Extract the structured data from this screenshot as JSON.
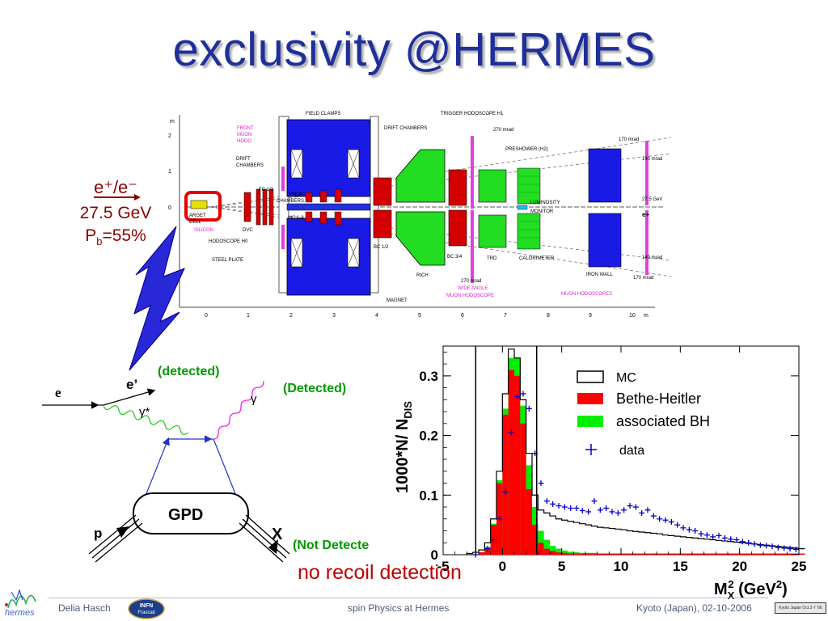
{
  "slide": {
    "title": "exclusivity @HERMES",
    "beam_particles": "e⁺/e⁻",
    "beam_energy": "27.5 GeV",
    "beam_pol_label": "P",
    "beam_pol_sub": "b",
    "beam_pol_value": "=55%",
    "no_recoil": "no recoil detection"
  },
  "detector": {
    "axis_unit_top": "m",
    "y_ticks": [
      "2",
      "1",
      "0",
      "-1"
    ],
    "x_ticks": [
      "0",
      "1",
      "2",
      "3",
      "4",
      "5",
      "6",
      "7",
      "8",
      "9",
      "10"
    ],
    "x_unit": "m",
    "labels": {
      "field_clamps": "FIELD CLAMPS",
      "trigger_h1": "TRIGGER HODOSCOPE H1",
      "drift_chambers_right": "DRIFT CHAMBERS",
      "mrad_270_top": "270 mrad",
      "mrad_170_top": "170 mrad",
      "preshower": "PRESHOWER (H2)",
      "mrad_140_top": "140 mrad",
      "front_muon_1": "FRONT",
      "front_muon_2": "MUON",
      "front_muon_3": "HODO",
      "drift_chambers_left_1": "DRIFT",
      "drift_chambers_left_2": "CHAMBERS",
      "fc12": "FC 1/2",
      "prop_ch_1": "PROP.",
      "prop_ch_2": "CHAMBERS",
      "mc13": "MC 1-3",
      "luminosity_1": "LUMINOSITY",
      "luminosity_2": "MONITOR",
      "energy": "27.5 GeV",
      "eplus": "e+",
      "target_1": "ARGET",
      "target_2": "CELL",
      "silicon": "SILICON",
      "dvc": "DVC",
      "hodoscope_h0": "HODOSCOPE H0",
      "steel_plate": "STEEL PLATE",
      "bc12": "BC 1/2",
      "bc34": "BC 3/4",
      "trd": "TRD",
      "calorimeter": "CALORIMETER",
      "mrad_140_bottom": "140 mrad",
      "iron_wall": "IRON WALL",
      "mrad_170_bottom": "170 mrad",
      "rich": "RICH",
      "mrad_270_bottom": "270 mrad",
      "wide_angle_1": "WIDE ANGLE",
      "wide_angle_2": "MUON HODOSCOPE",
      "muon_hodoscopes": "MUON HODOSCOPES",
      "magnet": "MAGNET"
    }
  },
  "feynman": {
    "e": "e",
    "e_prime": "e’",
    "detected_1": "(detected)",
    "gamma_star": "γ*",
    "gamma": "γ",
    "detected_2": "(Detected)",
    "gpd": "GPD",
    "p": "p",
    "x": "X",
    "not_detected": "(Not Detecte"
  },
  "chart_data": {
    "type": "bar",
    "ylabel": "1000*N/ N",
    "ylabel_sub": "DIS",
    "xlabel": "M",
    "xlabel_sub": "X",
    "xlabel_sup": "2",
    "xlabel_unit": " (GeV",
    "xlabel_unit_sup": "2",
    "xlabel_unit_end": ")",
    "xlim": [
      -5,
      25
    ],
    "ylim": [
      0,
      0.35
    ],
    "x_ticks": [
      "-5",
      "0",
      "5",
      "10",
      "15",
      "20",
      "25"
    ],
    "y_ticks": [
      "0",
      "0.1",
      "0.2",
      "0.3"
    ],
    "cut_lines": [
      -2.25,
      2.89
    ],
    "bin_width": 0.5,
    "bin_start": -3,
    "legend": {
      "mc": "MC",
      "bh": "Bethe-Heitler",
      "abh": "associated BH",
      "data": "data"
    },
    "series": [
      {
        "name": "MC",
        "color": "#000000",
        "values": [
          0.002,
          0.004,
          0.008,
          0.02,
          0.06,
          0.14,
          0.27,
          0.345,
          0.33,
          0.26,
          0.17,
          0.1,
          0.075,
          0.07,
          0.065,
          0.06,
          0.058,
          0.056,
          0.054,
          0.052,
          0.05,
          0.048,
          0.046,
          0.045,
          0.044,
          0.043,
          0.042,
          0.04,
          0.039,
          0.038,
          0.037,
          0.036,
          0.035,
          0.033,
          0.032,
          0.031,
          0.03,
          0.029,
          0.028,
          0.027,
          0.026,
          0.025,
          0.024,
          0.023,
          0.022,
          0.021,
          0.02,
          0.019,
          0.018,
          0.017,
          0.016,
          0.015,
          0.014,
          0.013,
          0.012,
          0.011,
          0.01
        ]
      },
      {
        "name": "Bethe-Heitler",
        "color": "#ff0000",
        "values": [
          0.0,
          0.0,
          0.004,
          0.012,
          0.05,
          0.12,
          0.235,
          0.31,
          0.3,
          0.22,
          0.11,
          0.05,
          0.02,
          0.01,
          0.006,
          0.004,
          0.003,
          0.002,
          0.002,
          0.002,
          0.002,
          0.002,
          0.002,
          0.002,
          0.002,
          0.002,
          0.002,
          0.002,
          0.002,
          0.002,
          0.002,
          0.002,
          0.002,
          0.002,
          0.002,
          0.002,
          0.002,
          0.002,
          0.002,
          0.002,
          0.002,
          0.002,
          0.002,
          0.002,
          0.002,
          0.002,
          0.002,
          0.002,
          0.002,
          0.002,
          0.002,
          0.002,
          0.002,
          0.002,
          0.002,
          0.002,
          0.002
        ]
      },
      {
        "name": "associated BH",
        "color": "#00ee00",
        "values": [
          0.0,
          0.0,
          0.004,
          0.013,
          0.052,
          0.125,
          0.245,
          0.33,
          0.33,
          0.25,
          0.15,
          0.08,
          0.04,
          0.025,
          0.015,
          0.01,
          0.007,
          0.005,
          0.004,
          0.003,
          0.003,
          0.003,
          0.002,
          0.002,
          0.002,
          0.002,
          0.002,
          0.002,
          0.002,
          0.002,
          0.002,
          0.002,
          0.002,
          0.002,
          0.002,
          0.002,
          0.002,
          0.002,
          0.002,
          0.002,
          0.002,
          0.002,
          0.002,
          0.002,
          0.002,
          0.002,
          0.002,
          0.002,
          0.002,
          0.002,
          0.002,
          0.002,
          0.002,
          0.002,
          0.002,
          0.002,
          0.002
        ]
      },
      {
        "name": "data",
        "color": "#0000cc",
        "x": [
          -2.5,
          -1.5,
          -1.0,
          -0.5,
          0.0,
          0.5,
          1.0,
          1.5,
          2.0,
          2.5,
          3.0,
          3.5,
          4.0,
          4.5,
          5.0,
          5.5,
          6.0,
          6.5,
          7.0,
          7.5,
          8.0,
          8.5,
          9.0,
          9.5,
          10.0,
          10.5,
          11.0,
          11.5,
          12.0,
          12.5,
          13.0,
          13.5,
          14.0,
          14.5,
          15.0,
          15.5,
          16.0,
          16.5,
          17.0,
          17.5,
          18.0,
          18.5,
          19.0,
          19.5,
          20.0,
          20.5,
          21.0,
          21.5,
          22.0,
          22.5,
          23.0,
          23.5,
          24.0,
          24.5
        ],
        "y": [
          0.0,
          0.01,
          0.025,
          0.06,
          0.105,
          0.205,
          0.265,
          0.27,
          0.245,
          0.17,
          0.12,
          0.09,
          0.085,
          0.082,
          0.08,
          0.078,
          0.078,
          0.074,
          0.072,
          0.09,
          0.075,
          0.078,
          0.072,
          0.07,
          0.075,
          0.082,
          0.08,
          0.07,
          0.075,
          0.065,
          0.06,
          0.058,
          0.055,
          0.05,
          0.045,
          0.042,
          0.04,
          0.035,
          0.033,
          0.03,
          0.032,
          0.028,
          0.026,
          0.025,
          0.022,
          0.02,
          0.018,
          0.016,
          0.015,
          0.014,
          0.012,
          0.011,
          0.01,
          0.009
        ]
      }
    ]
  },
  "footer": {
    "author": "Delia Hasch",
    "logo_left": "hermes",
    "infn_1": "INFN",
    "infn_2": "Frascati",
    "center": "spin Physics at Hermes",
    "right": "Kyoto (Japan), 02-10-2006",
    "stamp": "Kyoto Japan Oct.2-7 '06"
  }
}
